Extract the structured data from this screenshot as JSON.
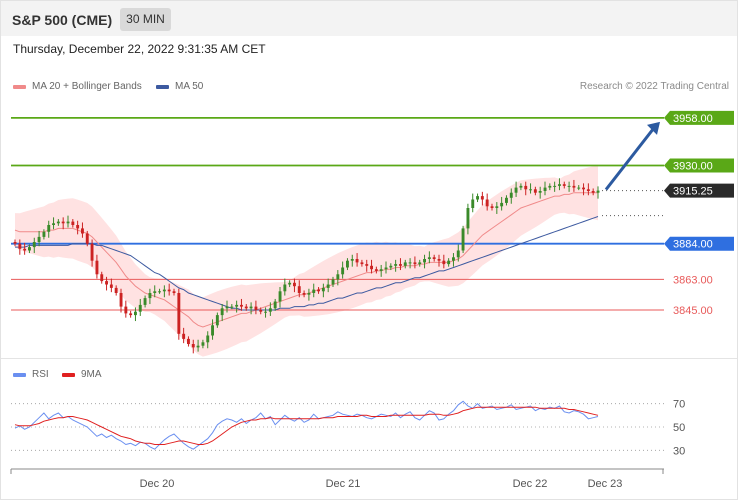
{
  "header": {
    "title": "S&P 500 (CME)",
    "timeframe": "30 MIN"
  },
  "timestamp": "Thursday, December 22, 2022 9:31:35 AM CET",
  "legend": {
    "ma20": "MA 20 + Bollinger Bands",
    "ma50": "MA 50",
    "credit": "Research © 2022 Trading Central"
  },
  "colors": {
    "resistance": "#5aa817",
    "pivot": "#2f6fe0",
    "support": "#e85a5a",
    "ma20": "#f08a8a",
    "ma50": "#3d5aa0",
    "band": "#ffe2e2",
    "up_candle": "#3a8a2a",
    "down_candle": "#cc2222",
    "arrow": "#2c5aa0",
    "rsi": "#6a8ff0",
    "rsi_ma": "#e02020"
  },
  "chart_data": [
    {
      "type": "candlestick",
      "title": "S&P 500 (CME)",
      "timeframe": "30 MIN",
      "x_ticks": [
        "Dec 20",
        "Dec 21",
        "Dec 22",
        "Dec 23"
      ],
      "ylim": [
        3825,
        3965
      ],
      "levels": [
        {
          "value": 3958.0,
          "label": "3958.00",
          "kind": "resistance"
        },
        {
          "value": 3930.0,
          "label": "3930.00",
          "kind": "resistance"
        },
        {
          "value": 3915.25,
          "label": "3915.25",
          "kind": "last"
        },
        {
          "value": 3884.0,
          "label": "3884.00",
          "kind": "pivot"
        },
        {
          "value": 3863.0,
          "label": "3863.00",
          "kind": "support"
        },
        {
          "value": 3845.0,
          "label": "3845.00",
          "kind": "support"
        }
      ],
      "close": [
        3884,
        3881,
        3880,
        3882,
        3885,
        3888,
        3891,
        3895,
        3896,
        3897,
        3896,
        3897,
        3895,
        3893,
        3890,
        3884,
        3874,
        3866,
        3862,
        3860,
        3858,
        3855,
        3847,
        3843,
        3842,
        3844,
        3848,
        3852,
        3855,
        3856,
        3856,
        3857,
        3856,
        3855,
        3831,
        3828,
        3825,
        3823,
        3824,
        3826,
        3830,
        3836,
        3842,
        3846,
        3847,
        3847,
        3848,
        3847,
        3846,
        3847,
        3845,
        3844,
        3844,
        3846,
        3850,
        3856,
        3860,
        3861,
        3859,
        3855,
        3854,
        3855,
        3857,
        3856,
        3858,
        3860,
        3863,
        3866,
        3870,
        3874,
        3875,
        3873,
        3872,
        3871,
        3869,
        3868,
        3869,
        3870,
        3871,
        3872,
        3871,
        3873,
        3873,
        3872,
        3873,
        3875,
        3876,
        3875,
        3874,
        3872,
        3874,
        3876,
        3880,
        3893,
        3905,
        3910,
        3912,
        3910,
        3906,
        3905,
        3906,
        3908,
        3911,
        3914,
        3917,
        3918,
        3916,
        3916,
        3914,
        3915,
        3917,
        3918,
        3918,
        3919,
        3918,
        3918,
        3917,
        3917,
        3916,
        3915,
        3914,
        3915.25
      ],
      "ma20": [
        3892,
        3891,
        3891,
        3891,
        3891,
        3891,
        3891,
        3892,
        3892,
        3893,
        3893,
        3893,
        3893,
        3892,
        3891,
        3890,
        3888,
        3885,
        3882,
        3879,
        3876,
        3873,
        3869,
        3865,
        3862,
        3859,
        3857,
        3855,
        3854,
        3853,
        3852,
        3851,
        3849,
        3847,
        3845,
        3843,
        3841,
        3838,
        3836,
        3835,
        3836,
        3837,
        3838,
        3839,
        3840,
        3841,
        3842,
        3843,
        3843,
        3844,
        3845,
        3846,
        3847,
        3848,
        3849,
        3850,
        3851,
        3852,
        3853,
        3854,
        3854,
        3855,
        3856,
        3857,
        3858,
        3859,
        3860,
        3861,
        3862,
        3863,
        3864,
        3865,
        3866,
        3867,
        3867,
        3868,
        3868,
        3869,
        3869,
        3870,
        3870,
        3871,
        3871,
        3871,
        3872,
        3872,
        3873,
        3873,
        3873,
        3873,
        3873,
        3874,
        3875,
        3877,
        3880,
        3883,
        3886,
        3889,
        3891,
        3893,
        3895,
        3897,
        3899,
        3901,
        3903,
        3905,
        3906,
        3907,
        3908,
        3909,
        3910,
        3911,
        3912,
        3912,
        3913,
        3913,
        3914,
        3914,
        3914,
        3914,
        3914,
        3914
      ],
      "ma50": [
        3882,
        3882,
        3882,
        3883,
        3883,
        3883,
        3883,
        3883,
        3883,
        3883,
        3883,
        3883,
        3884,
        3884,
        3884,
        3884,
        3884,
        3883,
        3883,
        3882,
        3881,
        3880,
        3879,
        3878,
        3877,
        3875,
        3873,
        3871,
        3869,
        3867,
        3866,
        3864,
        3862,
        3860,
        3858,
        3857,
        3855,
        3854,
        3853,
        3852,
        3851,
        3850,
        3849,
        3848,
        3847,
        3846,
        3846,
        3845,
        3845,
        3845,
        3845,
        3845,
        3845,
        3845,
        3845,
        3846,
        3846,
        3846,
        3847,
        3847,
        3847,
        3848,
        3848,
        3849,
        3849,
        3850,
        3851,
        3852,
        3852,
        3853,
        3854,
        3855,
        3855,
        3856,
        3857,
        3858,
        3858,
        3859,
        3860,
        3861,
        3861,
        3862,
        3863,
        3864,
        3864,
        3865,
        3866,
        3867,
        3868,
        3868,
        3869,
        3870,
        3871,
        3872,
        3873,
        3874,
        3875,
        3876,
        3877,
        3878,
        3879,
        3880,
        3881,
        3882,
        3883,
        3884,
        3885,
        3886,
        3887,
        3888,
        3889,
        3890,
        3891,
        3892,
        3893,
        3894,
        3895,
        3896,
        3897,
        3898,
        3899,
        3900
      ]
    },
    {
      "type": "line",
      "title": "RSI",
      "legend": [
        "RSI",
        "9MA"
      ],
      "yticks": [
        70,
        50,
        30
      ],
      "ylim": [
        20,
        80
      ],
      "series": [
        {
          "name": "RSI",
          "values": [
            49,
            51,
            48,
            50,
            54,
            58,
            62,
            57,
            60,
            62,
            58,
            59,
            56,
            54,
            52,
            50,
            46,
            42,
            44,
            41,
            43,
            40,
            38,
            35,
            36,
            34,
            37,
            36,
            33,
            31,
            35,
            39,
            42,
            44,
            40,
            36,
            33,
            31,
            34,
            37,
            40,
            45,
            52,
            55,
            57,
            56,
            54,
            57,
            53,
            56,
            58,
            62,
            57,
            59,
            52,
            56,
            60,
            57,
            55,
            58,
            54,
            56,
            61,
            57,
            58,
            59,
            60,
            63,
            61,
            60,
            59,
            61,
            60,
            58,
            57,
            59,
            61,
            60,
            59,
            62,
            58,
            61,
            63,
            58,
            56,
            60,
            64,
            62,
            56,
            57,
            61,
            64,
            69,
            72,
            68,
            66,
            70,
            66,
            67,
            68,
            65,
            66,
            67,
            69,
            65,
            66,
            67,
            68,
            64,
            66,
            65,
            67,
            66,
            68,
            63,
            62,
            64,
            63,
            61,
            57,
            58,
            59
          ]
        },
        {
          "name": "9MA",
          "values": [
            52,
            51,
            51,
            51,
            52,
            53,
            55,
            56,
            57,
            58,
            58,
            59,
            59,
            58,
            57,
            56,
            54,
            52,
            50,
            48,
            46,
            44,
            42,
            41,
            40,
            38,
            37,
            36,
            36,
            35,
            35,
            35,
            36,
            37,
            38,
            38,
            37,
            36,
            35,
            35,
            36,
            38,
            41,
            44,
            47,
            50,
            52,
            54,
            55,
            56,
            56,
            57,
            57,
            58,
            57,
            57,
            57,
            57,
            57,
            57,
            57,
            57,
            57,
            57,
            58,
            58,
            58,
            59,
            59,
            59,
            59,
            59,
            60,
            60,
            59,
            59,
            59,
            59,
            60,
            60,
            60,
            60,
            60,
            60,
            60,
            60,
            61,
            61,
            61,
            60,
            60,
            61,
            62,
            64,
            65,
            66,
            67,
            67,
            67,
            67,
            67,
            67,
            67,
            67,
            67,
            67,
            67,
            67,
            67,
            66,
            66,
            66,
            66,
            66,
            66,
            65,
            65,
            64,
            63,
            62,
            61,
            60
          ]
        }
      ]
    }
  ]
}
